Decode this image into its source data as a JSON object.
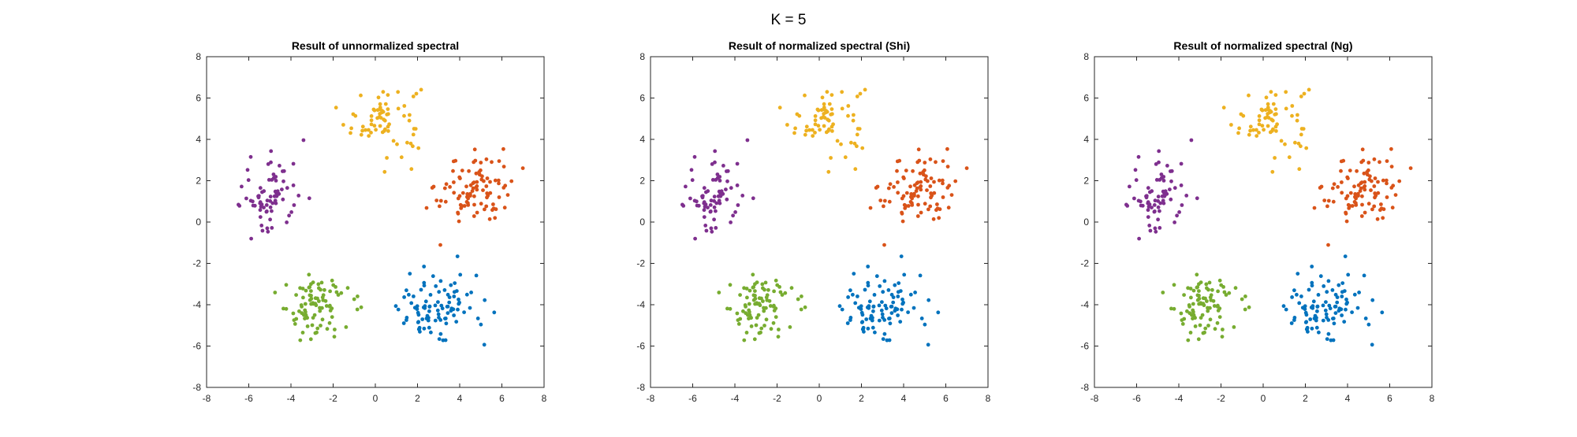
{
  "suptitle": "K = 5",
  "colors": {
    "blue": "#0072BD",
    "orange": "#D95319",
    "yellow": "#EDB120",
    "purple": "#7E2F8E",
    "green": "#77AC30",
    "axis": "#262626"
  },
  "chart_data": [
    {
      "type": "scatter",
      "title": "Result of unnormalized spectral",
      "xlim": [
        -8,
        8
      ],
      "ylim": [
        -8,
        8
      ],
      "xticks": [
        -8,
        -6,
        -4,
        -2,
        0,
        2,
        4,
        6,
        8
      ],
      "yticks": [
        -8,
        -6,
        -4,
        -2,
        0,
        2,
        4,
        6,
        8
      ],
      "grid": false,
      "clusters": [
        {
          "color": "yellow",
          "center": [
            0.4,
            5.0
          ],
          "spread": [
            0.9,
            0.9
          ],
          "n": 70
        },
        {
          "color": "orange",
          "center": [
            4.7,
            1.6
          ],
          "spread": [
            0.9,
            0.9
          ],
          "n": 95
        },
        {
          "color": "purple",
          "center": [
            -4.9,
            1.4
          ],
          "spread": [
            0.8,
            1.0
          ],
          "n": 75
        },
        {
          "color": "green",
          "center": [
            -2.9,
            -4.2
          ],
          "spread": [
            0.8,
            0.8
          ],
          "n": 90
        },
        {
          "color": "blue",
          "center": [
            3.0,
            -4.0
          ],
          "spread": [
            0.9,
            0.9
          ],
          "n": 95
        }
      ]
    },
    {
      "type": "scatter",
      "title": "Result of normalized spectral (Shi)",
      "xlim": [
        -8,
        8
      ],
      "ylim": [
        -8,
        8
      ],
      "xticks": [
        -8,
        -6,
        -4,
        -2,
        0,
        2,
        4,
        6,
        8
      ],
      "yticks": [
        -8,
        -6,
        -4,
        -2,
        0,
        2,
        4,
        6,
        8
      ],
      "grid": false,
      "clusters": [
        {
          "color": "yellow",
          "center": [
            0.4,
            5.0
          ],
          "spread": [
            0.9,
            0.9
          ],
          "n": 70
        },
        {
          "color": "orange",
          "center": [
            4.7,
            1.6
          ],
          "spread": [
            0.9,
            0.9
          ],
          "n": 95
        },
        {
          "color": "purple",
          "center": [
            -4.9,
            1.4
          ],
          "spread": [
            0.8,
            1.0
          ],
          "n": 75
        },
        {
          "color": "green",
          "center": [
            -2.9,
            -4.2
          ],
          "spread": [
            0.8,
            0.8
          ],
          "n": 90
        },
        {
          "color": "blue",
          "center": [
            3.0,
            -4.0
          ],
          "spread": [
            0.9,
            0.9
          ],
          "n": 95
        }
      ]
    },
    {
      "type": "scatter",
      "title": "Result of normalized spectral (Ng)",
      "xlim": [
        -8,
        8
      ],
      "ylim": [
        -8,
        8
      ],
      "xticks": [
        -8,
        -6,
        -4,
        -2,
        0,
        2,
        4,
        6,
        8
      ],
      "yticks": [
        -8,
        -6,
        -4,
        -2,
        0,
        2,
        4,
        6,
        8
      ],
      "grid": false,
      "clusters": [
        {
          "color": "yellow",
          "center": [
            0.4,
            5.0
          ],
          "spread": [
            0.9,
            0.9
          ],
          "n": 70
        },
        {
          "color": "orange",
          "center": [
            4.7,
            1.6
          ],
          "spread": [
            0.9,
            0.9
          ],
          "n": 95
        },
        {
          "color": "purple",
          "center": [
            -4.9,
            1.4
          ],
          "spread": [
            0.8,
            1.0
          ],
          "n": 75
        },
        {
          "color": "green",
          "center": [
            -2.9,
            -4.2
          ],
          "spread": [
            0.8,
            0.8
          ],
          "n": 90
        },
        {
          "color": "blue",
          "center": [
            3.0,
            -4.0
          ],
          "spread": [
            0.9,
            0.9
          ],
          "n": 95
        }
      ]
    }
  ]
}
